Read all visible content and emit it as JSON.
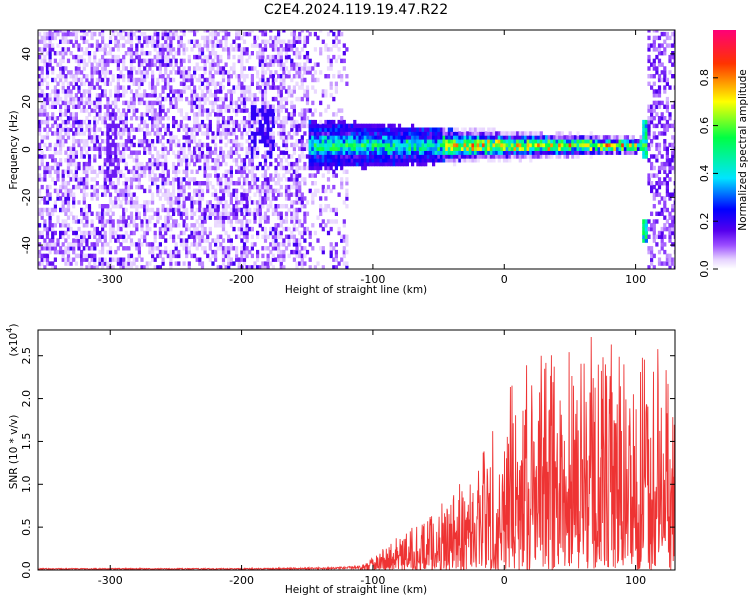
{
  "figure": {
    "title": "C2E4.2024.119.19.47.R22"
  },
  "chart_data": [
    {
      "type": "heatmap",
      "name": "spectrogram",
      "xlabel": "Height of straight line (km)",
      "ylabel": "Frequency (Hz)",
      "xlim": [
        -355,
        130
      ],
      "ylim": [
        -50,
        50
      ],
      "xticks": [
        -300,
        -200,
        -100,
        0,
        100
      ],
      "xtick_labels": [
        "-300",
        "-200",
        "-100",
        "0",
        "100"
      ],
      "yticks": [
        -40,
        -20,
        0,
        20,
        40
      ],
      "ytick_labels": [
        "-40",
        "-20",
        "0",
        "20",
        "40"
      ],
      "colorbar": {
        "label": "Normalized spectral amplitude",
        "range": [
          0,
          1
        ],
        "ticks": [
          0.0,
          0.2,
          0.4,
          0.6,
          0.8
        ],
        "tick_labels": [
          "0.0",
          "0.2",
          "0.4",
          "0.6",
          "0.8"
        ],
        "colormap": "rainbow (white-violet-blue-cyan-green-yellow-red-magenta)",
        "stops": [
          "#ffffff",
          "#e6d2ff",
          "#9b4dff",
          "#5500ee",
          "#0000ff",
          "#00e5ff",
          "#00ff44",
          "#ffff00",
          "#ff3300",
          "#ff0077"
        ]
      },
      "description_signal": {
        "noise_region_x": [
          -355,
          -120
        ],
        "band_start_x": -150,
        "band_end_x": 107,
        "band_center_hz": 1,
        "band_halfwidth_hz_start": 6,
        "band_halfwidth_hz_end": 2
      }
    },
    {
      "type": "line",
      "name": "snr",
      "xlabel": "Height of straight line (km)",
      "ylabel": "SNR (10 * v/v)",
      "y_multiplier": "(x10",
      "y_multiplier_exp": "4",
      "y_multiplier_close": ")",
      "xlim": [
        -355,
        130
      ],
      "ylim": [
        0,
        2.8
      ],
      "xticks": [
        -300,
        -200,
        -100,
        0,
        100
      ],
      "xtick_labels": [
        "-300",
        "-200",
        "-100",
        "0",
        "100"
      ],
      "yticks": [
        0.0,
        0.5,
        1.0,
        1.5,
        2.0,
        2.5
      ],
      "ytick_labels": [
        "0.0",
        "0.5",
        "1.0",
        "1.5",
        "2.0",
        "2.5"
      ],
      "line_color": "#ee3333",
      "envelope": {
        "x": [
          -355,
          -200,
          -130,
          -110,
          -100,
          -80,
          -60,
          -40,
          -20,
          -5,
          0,
          20,
          40,
          60,
          80,
          100,
          120,
          130
        ],
        "y": [
          0.02,
          0.02,
          0.03,
          0.05,
          0.15,
          0.4,
          0.6,
          0.9,
          1.3,
          1.9,
          2.15,
          2.5,
          2.7,
          2.75,
          2.65,
          2.55,
          2.75,
          2.0
        ]
      }
    }
  ]
}
